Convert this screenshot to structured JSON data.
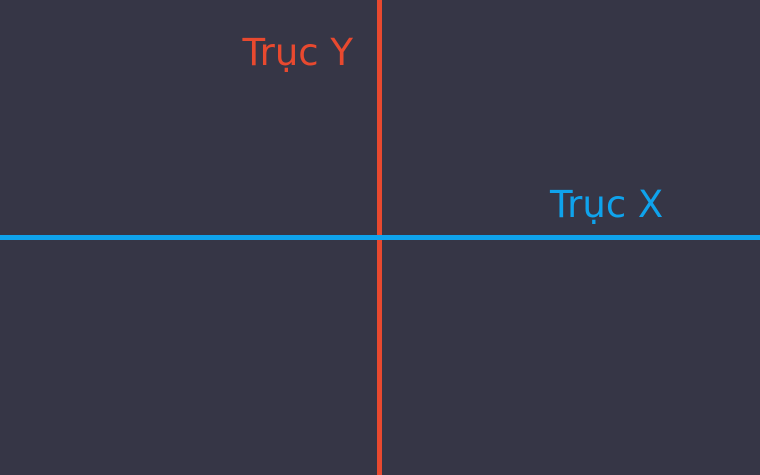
{
  "axes": {
    "y": {
      "label": "Trục Y",
      "color": "#e8492f"
    },
    "x": {
      "label": "Trục X",
      "color": "#0fa3ec"
    }
  },
  "colors": {
    "background": "#363646"
  }
}
